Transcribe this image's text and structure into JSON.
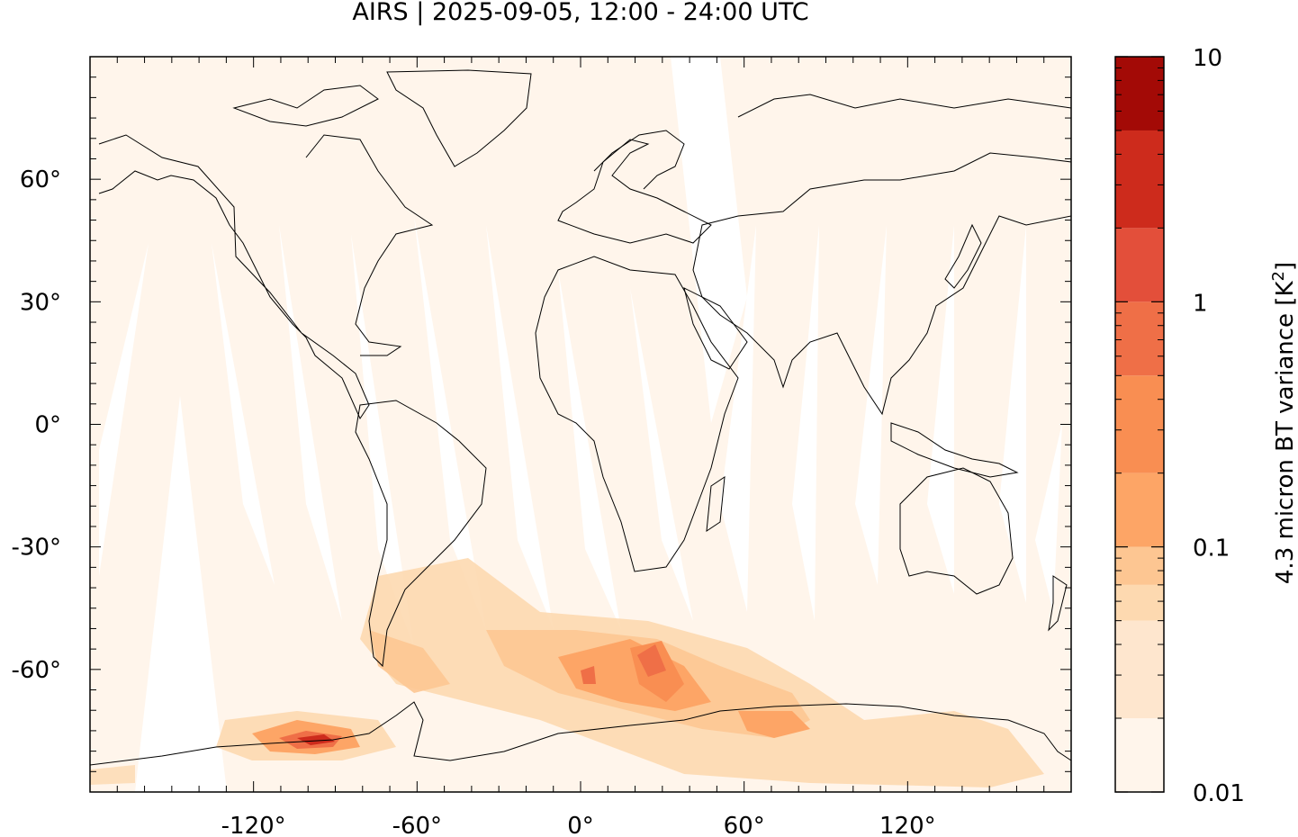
{
  "title": "AIRS | 2025-09-05, 12:00 - 24:00 UTC",
  "map": {
    "projection": "equirectangular",
    "lon_range": [
      -180,
      180
    ],
    "lat_range": [
      -90,
      90
    ],
    "lon_ticks": [
      {
        "value": -120,
        "label": "-120°"
      },
      {
        "value": -60,
        "label": "-60°"
      },
      {
        "value": 0,
        "label": "0°"
      },
      {
        "value": 60,
        "label": "60°"
      },
      {
        "value": 120,
        "label": "120°"
      }
    ],
    "lat_ticks": [
      {
        "value": 60,
        "label": "60°"
      },
      {
        "value": 30,
        "label": "30°"
      },
      {
        "value": 0,
        "label": "0°"
      },
      {
        "value": -30,
        "label": "-30°"
      },
      {
        "value": -60,
        "label": "-60°"
      }
    ],
    "background_fill": "#fff5eb",
    "coastline_color": "#000000"
  },
  "colorbar": {
    "label_main": "4.3 micron BT variance [K",
    "label_sup": "2",
    "label_end": "]",
    "scale": "log",
    "range": [
      0.01,
      10
    ],
    "tick_labels": [
      {
        "value": 10,
        "label": "10"
      },
      {
        "value": 1,
        "label": "1"
      },
      {
        "value": 0.1,
        "label": "0.1"
      },
      {
        "value": 0.01,
        "label": "0.01"
      }
    ],
    "levels": [
      0.01,
      0.02,
      0.05,
      0.07,
      0.1,
      0.2,
      0.5,
      1,
      2,
      5,
      10
    ],
    "colors": [
      "#fff5eb",
      "#fee6ce",
      "#fdd9b0",
      "#fdc692",
      "#fda566",
      "#f98e52",
      "#ef6f47",
      "#e34f3a",
      "#cd2b1c",
      "#a30a06"
    ]
  }
}
